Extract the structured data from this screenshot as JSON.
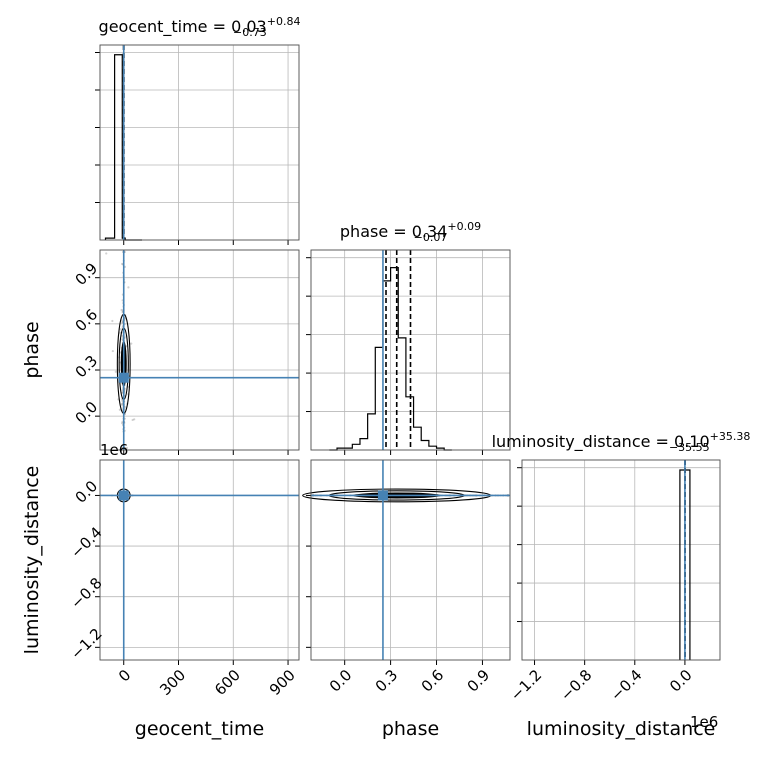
{
  "chart_data": {
    "type": "corner",
    "parameters": [
      {
        "name": "geocent_time",
        "xlabel": "geocent_time",
        "ylabel": "",
        "title_main": "geocent_time = 0.03",
        "title_sup": "+0.84",
        "title_sub": "−0.73",
        "range": [
          -130,
          960
        ],
        "ticks": [
          0,
          300,
          600,
          900
        ],
        "tick_labels": [
          "0",
          "300",
          "600",
          "900"
        ],
        "offset_label": "",
        "median": 0.03,
        "q_low": -0.7,
        "q_high": 0.87,
        "truth": 0.0,
        "hist_edges": [
          -100,
          -50,
          -8,
          8,
          50,
          100
        ],
        "hist_counts": [
          0.01,
          1.0,
          0.01,
          0.0,
          0.0
        ]
      },
      {
        "name": "phase",
        "xlabel": "phase",
        "ylabel": "phase",
        "title_main": "phase = 0.34",
        "title_sup": "+0.09",
        "title_sub": "−0.07",
        "range": [
          -0.22,
          1.08
        ],
        "ticks": [
          0.0,
          0.3,
          0.6,
          0.9
        ],
        "tick_labels": [
          "0.0",
          "0.3",
          "0.6",
          "0.9"
        ],
        "offset_label": "",
        "median": 0.34,
        "q_low": 0.27,
        "q_high": 0.43,
        "truth": 0.25,
        "hist_edges": [
          -0.1,
          -0.05,
          0.0,
          0.05,
          0.1,
          0.15,
          0.2,
          0.25,
          0.3,
          0.35,
          0.4,
          0.45,
          0.5,
          0.55,
          0.6,
          0.65,
          0.7
        ],
        "hist_counts": [
          0.0,
          0.01,
          0.01,
          0.03,
          0.06,
          0.19,
          0.54,
          0.89,
          0.96,
          0.59,
          0.28,
          0.12,
          0.05,
          0.02,
          0.01,
          0.0
        ]
      },
      {
        "name": "luminosity_distance",
        "xlabel": "luminosity_distance",
        "ylabel": "luminosity_distance",
        "title_main": "luminosity_distance = 0.10",
        "title_sup": "+35.38",
        "title_sub": "−35.55",
        "range": [
          -1300000,
          280000
        ],
        "ticks": [
          -1200000,
          -800000,
          -400000,
          0
        ],
        "tick_labels": [
          "−1.2",
          "−0.8",
          "−0.4",
          "0.0"
        ],
        "offset_label": "1e6",
        "median": 0.1,
        "q_low": -35.45,
        "q_high": 35.48,
        "truth": 0.0,
        "hist_edges": [
          -40000,
          0,
          40000
        ],
        "hist_counts": [
          1.0,
          1.0
        ]
      }
    ],
    "grid": true,
    "truth_color": "#4682b4",
    "hist_color": "#000000",
    "sample_color": "#9a9a9a"
  }
}
